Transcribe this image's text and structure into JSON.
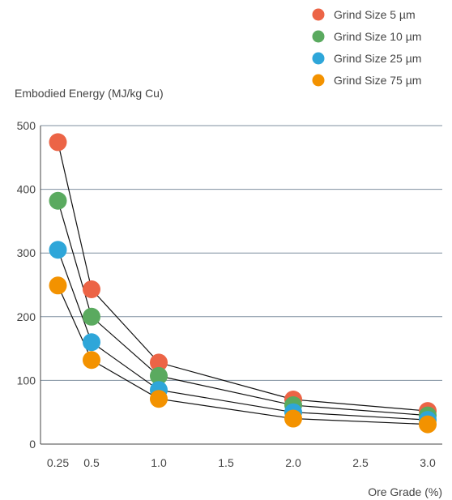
{
  "chart_data": {
    "type": "scatter",
    "title": "",
    "ylabel": "Embodied Energy (MJ/kg Cu)",
    "xlabel": "Ore Grade (%)",
    "xlim": [
      0.0,
      3.0
    ],
    "ylim": [
      0,
      500
    ],
    "x_ticks": [
      "0.25",
      "0.5",
      "1.0",
      "1.5",
      "2.0",
      "2.5",
      "3.0"
    ],
    "x_tick_values": [
      0.25,
      0.5,
      1.0,
      1.5,
      2.0,
      2.5,
      3.0
    ],
    "y_ticks": [
      "0",
      "100",
      "200",
      "300",
      "400",
      "500"
    ],
    "y_tick_values": [
      0,
      100,
      200,
      300,
      400,
      500
    ],
    "grid": "horizontal",
    "connect_points": true,
    "legend_position": "top-right",
    "x": [
      0.25,
      0.5,
      1.0,
      2.0,
      3.0
    ],
    "series": [
      {
        "name": "Grind Size 5 µm",
        "color": "#ec6446",
        "values": [
          474,
          243,
          128,
          70,
          52
        ]
      },
      {
        "name": "Grind Size 10 µm",
        "color": "#5aaa5f",
        "values": [
          382,
          200,
          107,
          61,
          45
        ]
      },
      {
        "name": "Grind Size 25 µm",
        "color": "#2ea6d9",
        "values": [
          305,
          160,
          85,
          50,
          38
        ]
      },
      {
        "name": "Grind Size 75 µm",
        "color": "#f39200",
        "values": [
          249,
          132,
          71,
          40,
          31
        ]
      }
    ]
  }
}
